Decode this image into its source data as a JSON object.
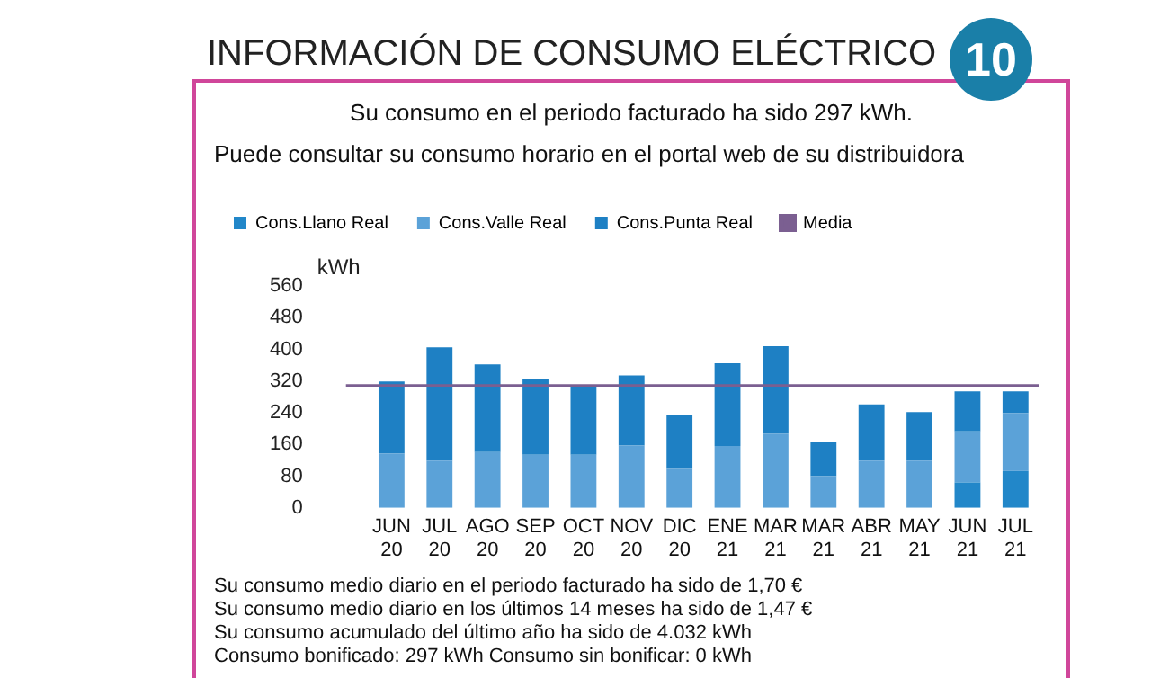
{
  "chart_data": {
    "type": "bar",
    "title": "INFORMACIÓN DE CONSUMO ELÉCTRICO",
    "subtitle": "Su consumo en el periodo facturado ha sido 297 kWh.",
    "annotations": [
      "10",
      "Puede consultar su consumo horario en el portal web de su distribuidora",
      "Su consumo medio diario en el periodo facturado ha sido de  1,70 €",
      "Su consumo medio diario en los últimos 14 meses ha sido de  1,47 €",
      "Su consumo acumulado del último año ha sido de  4.032 kWh",
      "Consumo bonificado:  297 kWh  Consumo sin bonificar:  0 kWh"
    ],
    "ylabel": "kWh",
    "categories": [
      "JUN 20",
      "JUL 20",
      "AGO 20",
      "SEP 20",
      "OCT 20",
      "NOV 20",
      "DIC 20",
      "ENE 21",
      "MAR 21",
      "MAR 21",
      "ABR 21",
      "MAY 21",
      "JUN 21",
      "JUL 21"
    ],
    "stacked": true,
    "series": [
      {
        "name": "Cons.Llano Real",
        "color": "#2287c9",
        "values": [
          null,
          null,
          null,
          null,
          null,
          null,
          null,
          null,
          null,
          null,
          null,
          null,
          64,
          93
        ]
      },
      {
        "name": "Cons.Valle Real",
        "color": "#5ba2d8",
        "values": [
          137,
          119,
          141,
          134,
          134,
          157,
          98,
          156,
          187,
          80,
          119,
          119,
          129,
          146
        ]
      },
      {
        "name": "Cons.Punta Real",
        "color": "#1e80c4",
        "values": [
          182,
          286,
          221,
          191,
          173,
          177,
          135,
          209,
          221,
          86,
          142,
          123,
          101,
          55
        ]
      }
    ],
    "ref_lines": [
      {
        "axis": "y",
        "value": 309,
        "label": "Media",
        "color": "#7b5f91"
      }
    ],
    "ylim": [
      0,
      560
    ],
    "yticks": [
      0,
      80,
      160,
      240,
      320,
      400,
      480,
      560
    ],
    "grid": false,
    "legend": "top"
  }
}
